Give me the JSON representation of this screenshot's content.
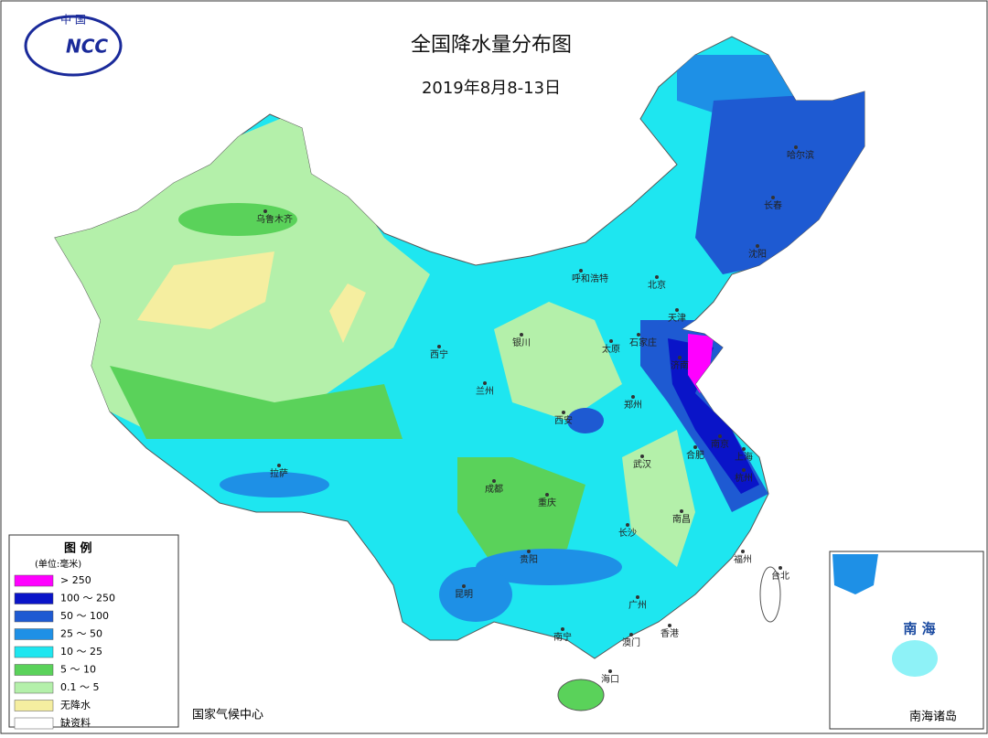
{
  "logo": {
    "top": "中 国",
    "mark": "NCC"
  },
  "header": {
    "title": "全国降水量分布图",
    "subtitle": "2019年8月8-13日"
  },
  "legend": {
    "title": "图 例",
    "unit": "(单位:毫米)",
    "items": [
      {
        "label": "> 250",
        "color": "#ff00ff"
      },
      {
        "label": "100 ～ 250",
        "color": "#0a14c8"
      },
      {
        "label": "50 ～ 100",
        "color": "#1e5ad2"
      },
      {
        "label": "25 ～ 50",
        "color": "#1e90e6"
      },
      {
        "label": "10 ～ 25",
        "color": "#1ee6f0"
      },
      {
        "label": "5 ～ 10",
        "color": "#5ad25a"
      },
      {
        "label": "0.1 ～ 5",
        "color": "#b4f0aa"
      },
      {
        "label": "无降水",
        "color": "#f5eea0"
      },
      {
        "label": "缺资料",
        "color": "#ffffff"
      }
    ]
  },
  "footer": "国家气候中心",
  "inset": {
    "sea": "南 海",
    "caption": "南海诸岛"
  },
  "cities": [
    "乌鲁木齐",
    "哈尔滨",
    "长春",
    "沈阳",
    "呼和浩特",
    "北京",
    "天津",
    "石家庄",
    "太原",
    "济南",
    "银川",
    "西宁",
    "兰州",
    "郑州",
    "西安",
    "南京",
    "合肥",
    "上海",
    "杭州",
    "武汉",
    "成都",
    "重庆",
    "拉萨",
    "南昌",
    "长沙",
    "贵阳",
    "昆明",
    "福州",
    "台北",
    "广州",
    "南宁",
    "香港",
    "澳门",
    "海口"
  ]
}
